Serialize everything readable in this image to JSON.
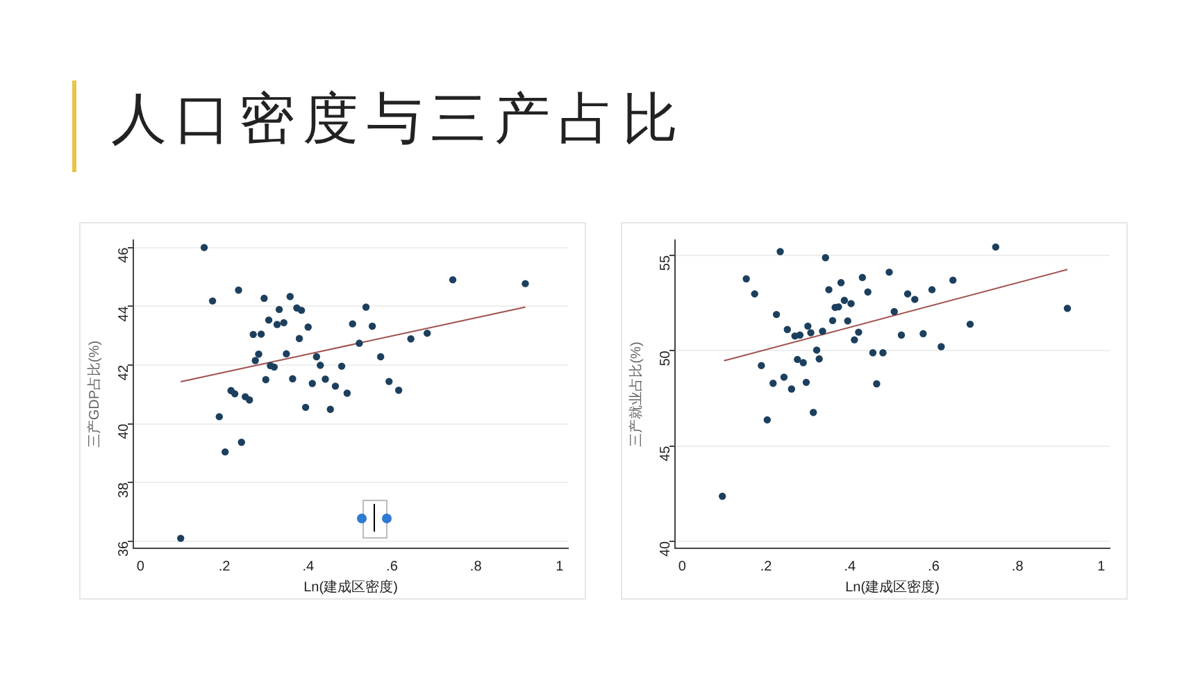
{
  "chart_data": [
    {
      "type": "scatter",
      "title": "人口密度与三产占比",
      "xlabel": "Ln(建成区密度)",
      "ylabel": "三产GDP占比(%)",
      "xlim": [
        -0.017,
        1.02
      ],
      "xticks": [
        {
          "value": 0,
          "label": "0"
        },
        {
          "value": 0.2,
          "label": ".2"
        },
        {
          "value": 0.4,
          "label": ".4"
        },
        {
          "value": 0.6,
          "label": ".6"
        },
        {
          "value": 0.8,
          "label": ".8"
        },
        {
          "value": 1,
          "label": "1"
        }
      ],
      "ylim": [
        35.76,
        46.25
      ],
      "yticks": [
        36,
        38,
        40,
        42,
        44,
        46
      ],
      "grid": "y",
      "legend": false,
      "marker": "circle",
      "series": [
        {
          "color": "#1c3f5e",
          "x": [
            0.152,
            0.172,
            0.234,
            0.295,
            0.357,
            0.096,
            0.188,
            0.202,
            0.241,
            0.216,
            0.225,
            0.25,
            0.26,
            0.269,
            0.274,
            0.282,
            0.288,
            0.299,
            0.306,
            0.31,
            0.319,
            0.326,
            0.331,
            0.342,
            0.348,
            0.363,
            0.373,
            0.379,
            0.384,
            0.4,
            0.394,
            0.41,
            0.42,
            0.429,
            0.441,
            0.453,
            0.465,
            0.48,
            0.493,
            0.506,
            0.522,
            0.538,
            0.553,
            0.573,
            0.593,
            0.616,
            0.645,
            0.684,
            0.745,
            0.918
          ],
          "values": [
            46.0,
            44.18,
            44.55,
            44.27,
            44.33,
            36.1,
            40.24,
            39.04,
            39.37,
            41.13,
            41.02,
            40.92,
            40.81,
            43.04,
            42.15,
            42.37,
            43.05,
            41.5,
            43.53,
            41.98,
            41.93,
            43.38,
            43.89,
            43.44,
            42.38,
            41.53,
            43.94,
            42.9,
            43.86,
            43.29,
            40.56,
            41.37,
            42.28,
            41.99,
            41.52,
            40.49,
            41.28,
            41.96,
            41.04,
            43.4,
            42.74,
            43.97,
            43.32,
            42.28,
            41.44,
            41.14,
            42.89,
            43.08,
            44.9,
            44.77
          ]
        },
        {
          "type": "line",
          "marker": "none",
          "color": "#a0504e",
          "x": [
            0.096,
            0.918
          ],
          "values": [
            41.43,
            43.97
          ]
        }
      ]
    },
    {
      "type": "scatter",
      "xlabel": "Ln(建成区密度)",
      "ylabel": "三产就业占比(%)",
      "xlim": [
        -0.017,
        1.02
      ],
      "xticks": [
        {
          "value": 0,
          "label": "0"
        },
        {
          "value": 0.2,
          "label": ".2"
        },
        {
          "value": 0.4,
          "label": ".4"
        },
        {
          "value": 0.6,
          "label": ".6"
        },
        {
          "value": 0.8,
          "label": ".8"
        },
        {
          "value": 1,
          "label": "1"
        }
      ],
      "ylim": [
        39.63,
        55.8
      ],
      "yticks": [
        40,
        45,
        50,
        55
      ],
      "grid": "y",
      "legend": false,
      "marker": "circle",
      "series": [
        {
          "color": "#1c3f5e",
          "x": [
            0.096,
            0.153,
            0.173,
            0.189,
            0.203,
            0.217,
            0.225,
            0.234,
            0.243,
            0.251,
            0.261,
            0.269,
            0.275,
            0.281,
            0.289,
            0.296,
            0.3,
            0.307,
            0.313,
            0.321,
            0.327,
            0.335,
            0.342,
            0.35,
            0.359,
            0.365,
            0.373,
            0.379,
            0.387,
            0.395,
            0.403,
            0.411,
            0.421,
            0.43,
            0.443,
            0.455,
            0.464,
            0.479,
            0.494,
            0.506,
            0.523,
            0.538,
            0.555,
            0.575,
            0.596,
            0.618,
            0.646,
            0.687,
            0.748,
            0.919
          ],
          "values": [
            42.36,
            53.77,
            52.98,
            49.22,
            46.37,
            48.29,
            51.9,
            55.2,
            48.61,
            51.11,
            47.99,
            50.77,
            49.54,
            50.82,
            49.37,
            48.34,
            51.29,
            50.94,
            46.76,
            50.03,
            49.57,
            51.02,
            54.88,
            53.2,
            51.58,
            52.27,
            52.3,
            53.57,
            52.64,
            51.56,
            52.47,
            50.57,
            50.97,
            53.84,
            53.08,
            49.89,
            48.26,
            49.89,
            54.12,
            52.05,
            50.82,
            52.98,
            52.69,
            50.89,
            53.2,
            50.21,
            53.7,
            51.39,
            55.44,
            52.22
          ]
        },
        {
          "type": "line",
          "marker": "none",
          "color": "#a0504e",
          "x": [
            0.1,
            0.919
          ],
          "values": [
            49.47,
            54.26
          ]
        }
      ]
    }
  ]
}
